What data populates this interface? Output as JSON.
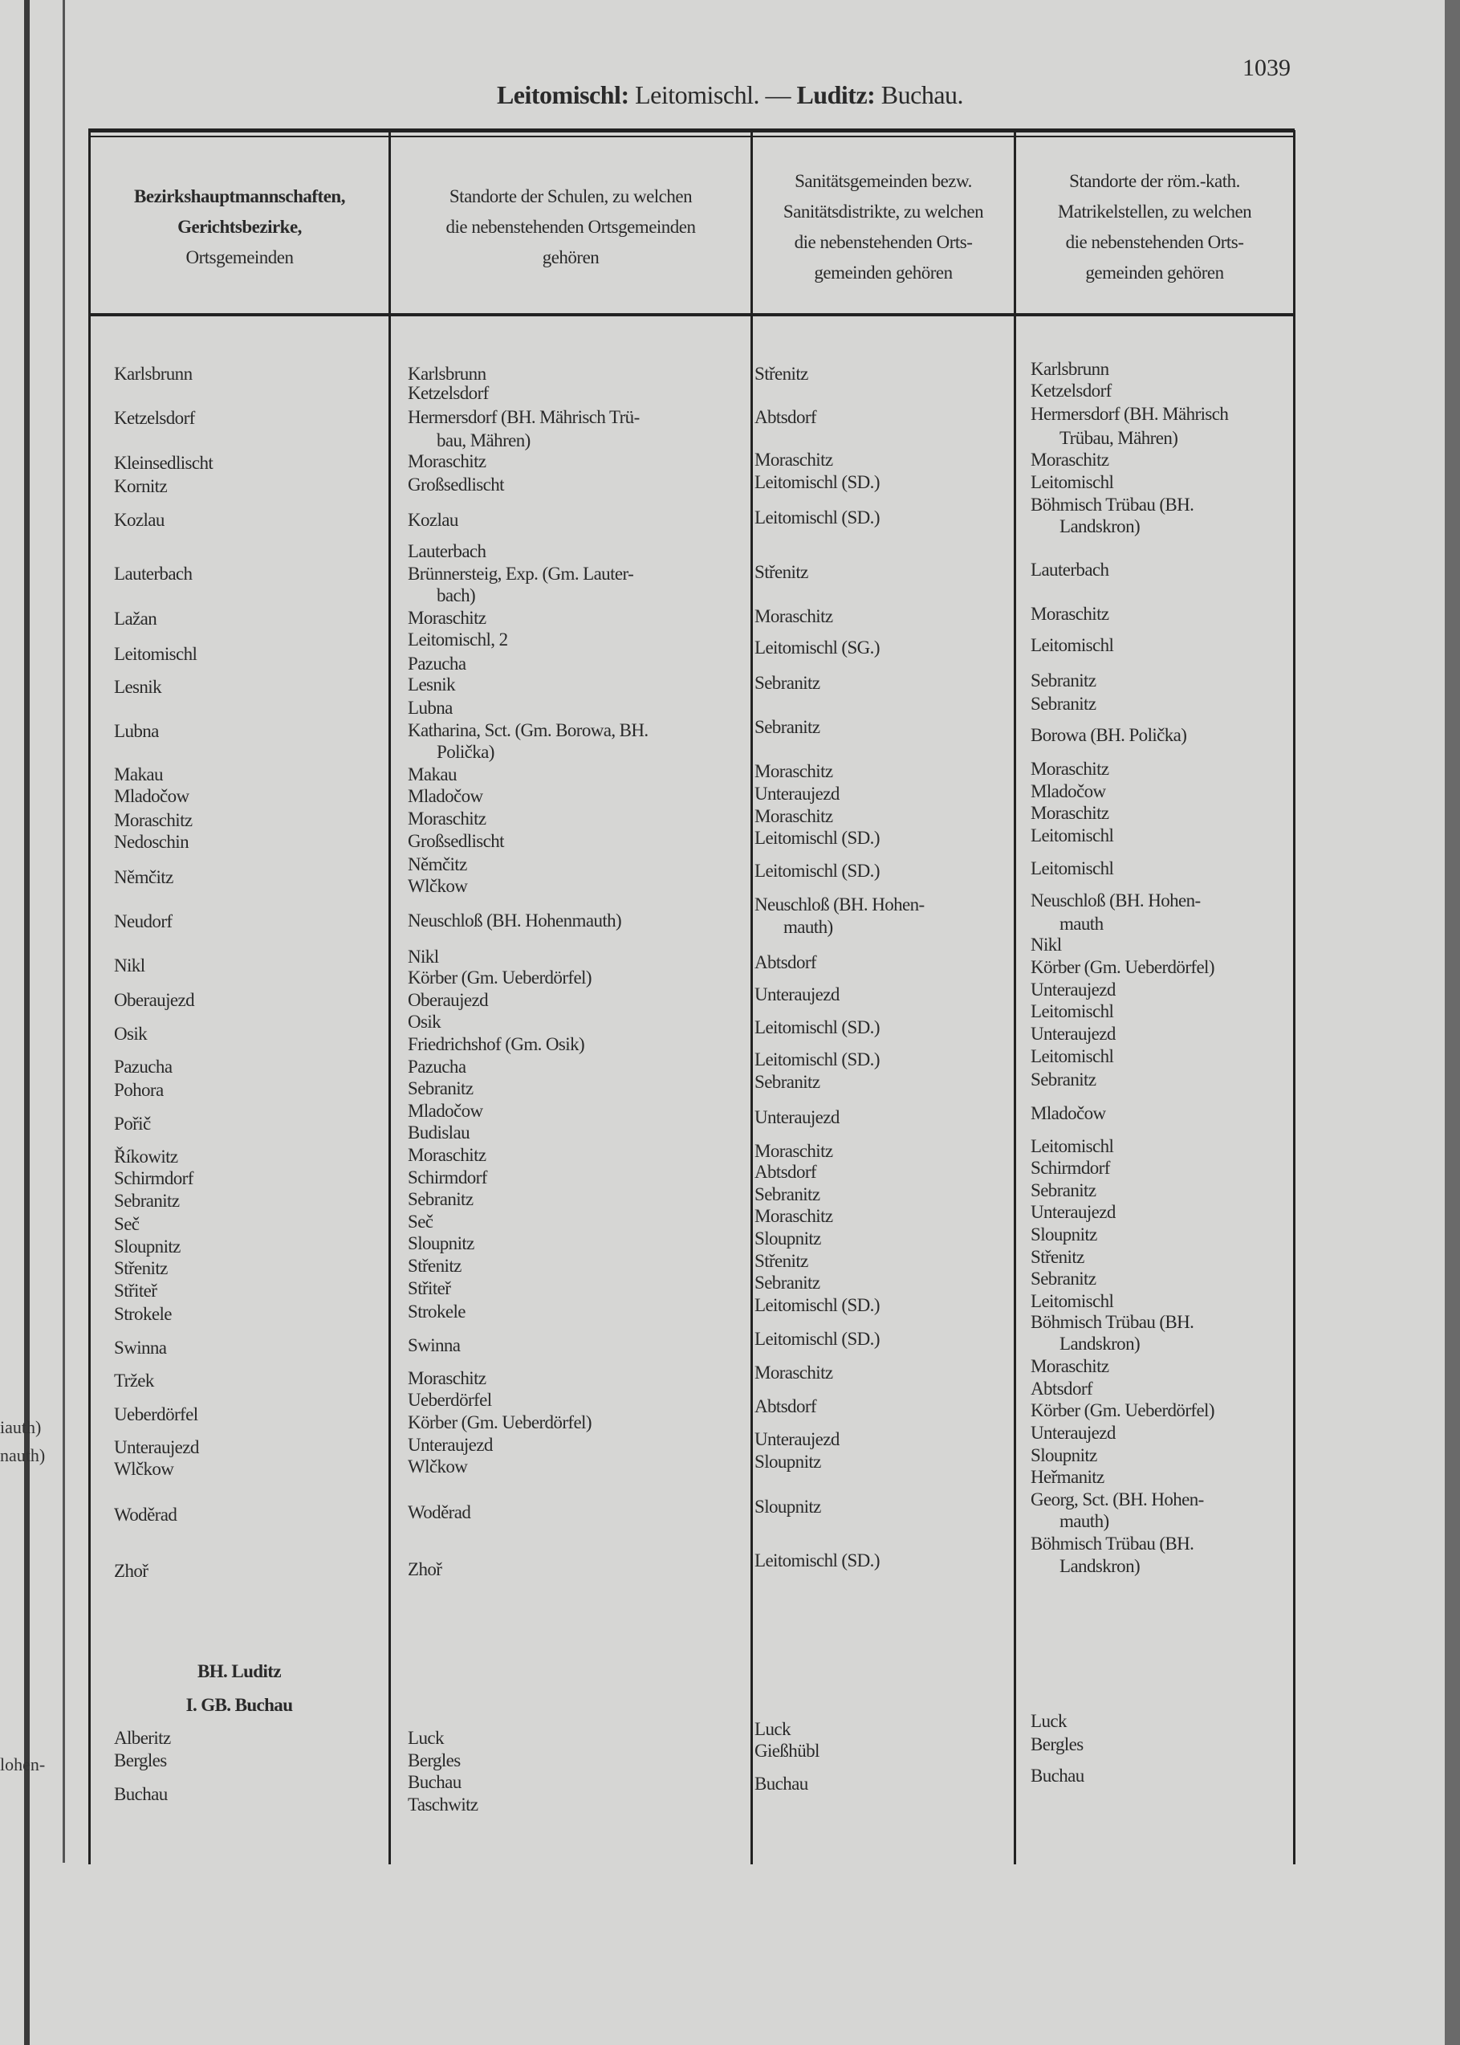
{
  "page": {
    "page_number": "1039",
    "title_bold_1": "Leitomischl:",
    "title_reg_1": " Leitomischl. — ",
    "title_bold_2": "Luditz:",
    "title_reg_2": " Buchau."
  },
  "margin_fragments": [
    "iauth)",
    "nauth)",
    "lohen-"
  ],
  "headers": {
    "col1": {
      "line1": "Bezirkshauptmannschaften,",
      "line2": "Gerichtsbezirke,",
      "line3": "Ortsgemeinden"
    },
    "col2": {
      "line1": "Standorte der Schulen, zu welchen",
      "line2": "die nebenstehenden Ortsgemeinden",
      "line3": "gehören"
    },
    "col3": {
      "line1": "Sanitätsgemeinden bezw.",
      "line2": "Sanitätsdistrikte, zu welchen",
      "line3": "die nebenstehenden Orts-",
      "line4": "gemeinden gehören"
    },
    "col4": {
      "line1": "Standorte der röm.-kath.",
      "line2": "Matrikelstellen, zu welchen",
      "line3": "die nebenstehenden Orts-",
      "line4": "gemeinden gehören"
    }
  },
  "columns": {
    "col1": [
      "Karlsbrunn",
      "Ketzelsdorf",
      "Kleinsedlischt",
      "Kornitz",
      "Kozlau",
      "Lauterbach",
      "Lažan",
      "Leitomischl",
      "Lesnik",
      "Lubna",
      "Makau",
      "Mladočow",
      "Moraschitz",
      "Nedoschin",
      "Němčitz",
      "Neudorf",
      "Nikl",
      "Oberaujezd",
      "Osik",
      "Pazucha",
      "Pohora",
      "Pořič",
      "Říkowitz",
      "Schirmdorf",
      "Sebranitz",
      "Seč",
      "Sloupnitz",
      "Střenitz",
      "Střiteř",
      "Strokele",
      "Swinna",
      "Tržek",
      "Ueberdörfel",
      "Unteraujezd",
      "Wlčkow",
      "Woděrad",
      "Zhoř",
      "Alberitz",
      "Bergles",
      "Buchau"
    ],
    "col1_section": {
      "district": "BH. Luditz",
      "court": "I. GB. Buchau"
    },
    "col2": [
      "Karlsbrunn",
      "Ketzelsdorf",
      "Hermersdorf (BH. Mährisch Trü-",
      "bau, Mähren)",
      "Moraschitz",
      "Großsedlischt",
      "Kozlau",
      "Lauterbach",
      "Brünnersteig, Exp. (Gm. Lauter-",
      "bach)",
      "Moraschitz",
      "Leitomischl, 2",
      "Pazucha",
      "Lesnik",
      "Lubna",
      "Katharina, Sct. (Gm. Borowa, BH.",
      "Polička)",
      "Makau",
      "Mladočow",
      "Moraschitz",
      "Großsedlischt",
      "Němčitz",
      "Wlčkow",
      "Neuschloß (BH. Hohenmauth)",
      "Nikl",
      "Körber (Gm. Ueberdörfel)",
      "Oberaujezd",
      "Osik",
      "Friedrichshof (Gm. Osik)",
      "Pazucha",
      "Sebranitz",
      "Mladočow",
      "Budislau",
      "Moraschitz",
      "Schirmdorf",
      "Sebranitz",
      "Seč",
      "Sloupnitz",
      "Střenitz",
      "Střiteř",
      "Strokele",
      "Swinna",
      "Moraschitz",
      "Ueberdörfel",
      "Körber (Gm. Ueberdörfel)",
      "Unteraujezd",
      "Wlčkow",
      "Woděrad",
      "Zhoř",
      "Luck",
      "Bergles",
      "Buchau",
      "Taschwitz"
    ],
    "col3": [
      "Střenitz",
      "Abtsdorf",
      "Moraschitz",
      "Leitomischl (SD.)",
      "Leitomischl (SD.)",
      "Střenitz",
      "Moraschitz",
      "Leitomischl (SG.)",
      "Sebranitz",
      "Sebranitz",
      "Moraschitz",
      "Unteraujezd",
      "Moraschitz",
      "Leitomischl (SD.)",
      "Leitomischl (SD.)",
      "Neuschloß (BH. Hohen-",
      "mauth)",
      "Abtsdorf",
      "Unteraujezd",
      "Leitomischl (SD.)",
      "Leitomischl (SD.)",
      "Sebranitz",
      "Unteraujezd",
      "Moraschitz",
      "Abtsdorf",
      "Sebranitz",
      "Moraschitz",
      "Sloupnitz",
      "Střenitz",
      "Sebranitz",
      "Leitomischl (SD.)",
      "Leitomischl (SD.)",
      "Moraschitz",
      "Abtsdorf",
      "Unteraujezd",
      "Sloupnitz",
      "Sloupnitz",
      "Leitomischl (SD.)",
      "Luck",
      "Gießhübl",
      "Buchau"
    ],
    "col4": [
      "Karlsbrunn",
      "Ketzelsdorf",
      "Hermersdorf (BH. Mährisch",
      "Trübau, Mähren)",
      "Moraschitz",
      "Leitomischl",
      "Böhmisch Trübau (BH.",
      "Landskron)",
      "Lauterbach",
      "Moraschitz",
      "Leitomischl",
      "Sebranitz",
      "Sebranitz",
      "Borowa (BH. Polička)",
      "Moraschitz",
      "Mladočow",
      "Moraschitz",
      "Leitomischl",
      "Leitomischl",
      "Neuschloß (BH. Hohen-",
      "mauth",
      "Nikl",
      "Körber (Gm. Ueberdörfel)",
      "Unteraujezd",
      "Leitomischl",
      "Unteraujezd",
      "Leitomischl",
      "Sebranitz",
      "Mladočow",
      "Leitomischl",
      "Schirmdorf",
      "Sebranitz",
      "Unteraujezd",
      "Sloupnitz",
      "Střenitz",
      "Sebranitz",
      "Leitomischl",
      "Böhmisch Trübau (BH.",
      "Landskron)",
      "Moraschitz",
      "Abtsdorf",
      "Körber (Gm. Ueberdörfel)",
      "Unteraujezd",
      "Sloupnitz",
      "Heřmanitz",
      "Georg, Sct. (BH. Hohen-",
      "mauth)",
      "Böhmisch Trübau (BH.",
      "Landskron)",
      "Luck",
      "Bergles",
      "Buchau"
    ]
  }
}
